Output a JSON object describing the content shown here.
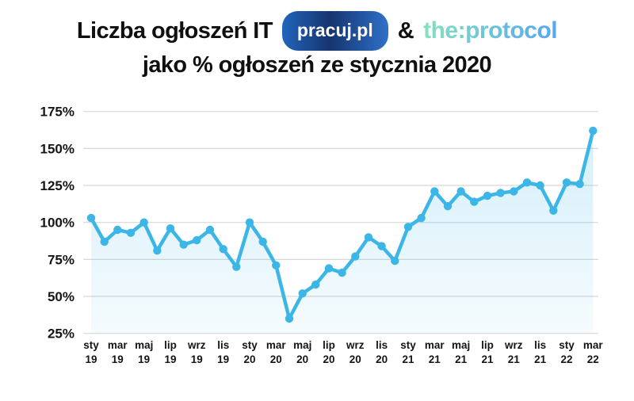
{
  "title": {
    "line1_prefix": "Liczba ogłoszeń IT",
    "badge": "pracuj.pl",
    "ampersand": "&",
    "logo": "the:protocol",
    "line2": "jako % ogłoszeń ze stycznia 2020"
  },
  "colors": {
    "line": "#3CB5E7",
    "fill_top": "rgba(60,181,231,0.22)",
    "fill_bottom": "rgba(60,181,231,0.05)",
    "gridline": "#D8D8D8",
    "text": "#101010",
    "badge_gradient_left": "#2264BC",
    "badge_gradient_mid": "#16356F",
    "badge_gradient_right": "#2E70C9",
    "logo_start": "#84DFC0",
    "logo_end": "#55A8F0"
  },
  "chart_data": {
    "type": "line",
    "title": "Liczba ogłoszeń IT pracuj.pl & the:protocol jako % ogłoszeń ze stycznia 2020",
    "unit": "%",
    "grid": "horizontal",
    "legend": "none",
    "ylim": [
      25,
      175
    ],
    "y_ticks": [
      175,
      150,
      125,
      100,
      75,
      50,
      25
    ],
    "x_tick_every": 2,
    "x": [
      "sty 19",
      "lut 19",
      "mar 19",
      "kwi 19",
      "maj 19",
      "cze 19",
      "lip 19",
      "sie 19",
      "wrz 19",
      "paź 19",
      "lis 19",
      "gru 19",
      "sty 20",
      "lut 20",
      "mar 20",
      "kwi 20",
      "maj 20",
      "cze 20",
      "lip 20",
      "sie 20",
      "wrz 20",
      "paź 20",
      "lis 20",
      "gru 20",
      "sty 21",
      "lut 21",
      "mar 21",
      "kwi 21",
      "maj 21",
      "cze 21",
      "lip 21",
      "sie 21",
      "wrz 21",
      "paź 21",
      "lis 21",
      "gru 21",
      "sty 22",
      "lut 22",
      "mar 22"
    ],
    "values": [
      103,
      87,
      95,
      93,
      100,
      81,
      96,
      85,
      88,
      95,
      82,
      70,
      100,
      87,
      71,
      35,
      52,
      58,
      69,
      66,
      77,
      90,
      84,
      74,
      97,
      103,
      121,
      111,
      121,
      114,
      118,
      120,
      121,
      127,
      125,
      108,
      127,
      126,
      162
    ]
  }
}
